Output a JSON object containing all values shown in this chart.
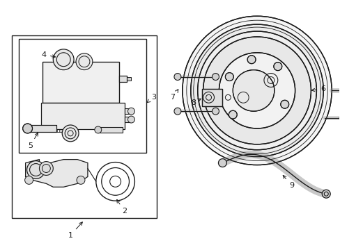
{
  "background_color": "#ffffff",
  "line_color": "#1a1a1a",
  "label_fontsize": 8,
  "figsize": [
    4.89,
    3.6
  ],
  "dpi": 100
}
